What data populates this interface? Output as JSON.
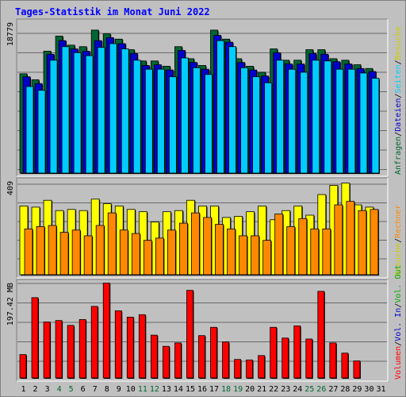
{
  "chart_data": {
    "type": "bar",
    "title": "Tages-Statistik im Monat Juni 2022",
    "days": [
      "1",
      "2",
      "3",
      "4",
      "5",
      "6",
      "7",
      "8",
      "9",
      "10",
      "11",
      "12",
      "13",
      "14",
      "15",
      "16",
      "17",
      "18",
      "19",
      "20",
      "21",
      "22",
      "23",
      "24",
      "25",
      "26",
      "27",
      "28",
      "29",
      "30",
      "31"
    ],
    "weekend_days": [
      "4",
      "5",
      "11",
      "12",
      "18",
      "19",
      "25",
      "26"
    ],
    "colors": {
      "title": "#0000ff",
      "weekend": "#006633",
      "hits": "#006633",
      "files": "#0000cc",
      "pages": "#00ccff",
      "visits": "#ffff00",
      "sites": "#ff8800",
      "kbytes": "#ff0000",
      "background": "#c0c0c0",
      "frame": "#808080"
    },
    "panels": [
      {
        "id": "top",
        "ymax_label": "18779",
        "ymax": 18779,
        "legend": [
          {
            "text": "Anfragen",
            "color": "#006633"
          },
          {
            "text": "/",
            "color": "#000000"
          },
          {
            "text": "Dateien",
            "color": "#0000cc"
          },
          {
            "text": "/",
            "color": "#000000"
          },
          {
            "text": "Seiten",
            "color": "#00ccff"
          },
          {
            "text": "/",
            "color": "#000000"
          },
          {
            "text": "Besuche",
            "color": "#cccc00"
          }
        ],
        "series": [
          {
            "name": "Anfragen",
            "color": "#006633",
            "values": [
              13200,
              12400,
              16200,
              18200,
              17000,
              16800,
              19000,
              18500,
              17800,
              16400,
              14900,
              14900,
              14200,
              16800,
              15200,
              14300,
              19000,
              17800,
              15200,
              14200,
              13400,
              16500,
              15000,
              15000,
              16400,
              16400,
              15200,
              15000,
              14400,
              13900,
              null
            ]
          },
          {
            "name": "Dateien",
            "color": "#0000cc",
            "values": [
              12800,
              11900,
              15800,
              17600,
              16500,
              16200,
              17600,
              18000,
              17200,
              15900,
              14300,
              14400,
              13700,
              16300,
              14700,
              13800,
              18300,
              17400,
              14700,
              13700,
              12900,
              16000,
              14500,
              14500,
              15900,
              15800,
              14800,
              14500,
              13900,
              13500,
              null
            ]
          },
          {
            "name": "Seiten",
            "color": "#00ccff",
            "values": [
              11500,
              11000,
              15000,
              16800,
              16000,
              15600,
              16700,
              17200,
              16500,
              15000,
              13800,
              13800,
              12800,
              15300,
              14000,
              13100,
              17600,
              16800,
              14000,
              12800,
              12000,
              15000,
              13800,
              13400,
              15000,
              14900,
              13800,
              13800,
              13300,
              12600,
              null
            ]
          }
        ]
      },
      {
        "id": "middle",
        "ymax_label": "409",
        "ymax": 409,
        "legend": [
          {
            "text": "Besuche",
            "color": "#cccc00"
          },
          {
            "text": "/",
            "color": "#000000"
          },
          {
            "text": "Rechner",
            "color": "#ff8800"
          }
        ],
        "series": [
          {
            "name": "Besuche",
            "color": "#ffff00",
            "values": [
              300,
              295,
              325,
              280,
              285,
              280,
              330,
              310,
              300,
              285,
              275,
              230,
              275,
              280,
              325,
              300,
              300,
              250,
              255,
              275,
              300,
              240,
              280,
              300,
              260,
              350,
              390,
              400,
              305,
              295,
              null
            ]
          },
          {
            "name": "Rechner",
            "color": "#ff8800",
            "values": [
              200,
              210,
              215,
              185,
              195,
              170,
              215,
              270,
              195,
              180,
              150,
              160,
              195,
              225,
              270,
              250,
              220,
              200,
              170,
              170,
              150,
              265,
              210,
              245,
              200,
              200,
              305,
              320,
              280,
              285,
              null
            ]
          }
        ]
      },
      {
        "id": "bottom",
        "ymax_label": "197.42 MB",
        "ymax": 197.42,
        "legend": [
          {
            "text": "Volumen",
            "color": "#ff0000"
          },
          {
            "text": "/",
            "color": "#000000"
          },
          {
            "text": "Vol. In",
            "color": "#0000cc"
          },
          {
            "text": "/",
            "color": "#000000"
          },
          {
            "text": "Vol. Out",
            "color": "#00aa00"
          }
        ],
        "series": [
          {
            "name": "Volumen",
            "color": "#ff0000",
            "values": [
              48,
              165,
              115,
              118,
              108,
              120,
              147,
              195,
              138,
              125,
              130,
              88,
              65,
              72,
              180,
              87,
              104,
              74,
              38,
              37,
              46,
              104,
              82,
              107,
              80,
              178,
              72,
              51,
              35,
              null,
              null
            ]
          }
        ]
      }
    ]
  }
}
